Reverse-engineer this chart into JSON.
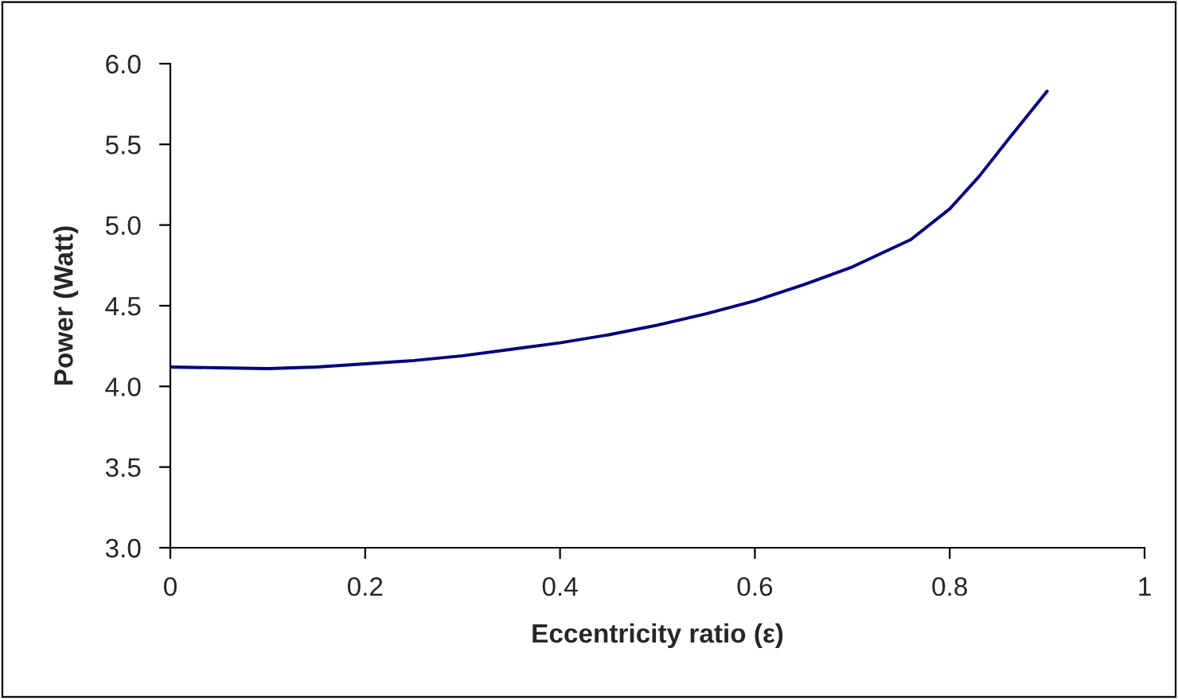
{
  "chart_data": {
    "type": "line",
    "xlabel": "Eccentricity ratio (ε)",
    "ylabel": "Power (Watt)",
    "x": [
      0,
      0.05,
      0.1,
      0.15,
      0.2,
      0.25,
      0.3,
      0.35,
      0.4,
      0.45,
      0.5,
      0.55,
      0.6,
      0.65,
      0.7,
      0.76,
      0.8,
      0.83,
      0.86,
      0.9
    ],
    "series": [
      {
        "color": "#000080",
        "values": [
          4.12,
          4.115,
          4.11,
          4.12,
          4.14,
          4.16,
          4.19,
          4.23,
          4.27,
          4.32,
          4.38,
          4.45,
          4.53,
          4.63,
          4.74,
          4.91,
          5.1,
          5.3,
          5.53,
          5.83
        ]
      }
    ],
    "xlim": [
      0,
      1
    ],
    "xticks": [
      0,
      0.2,
      0.4,
      0.6,
      0.8,
      1
    ],
    "ylim": [
      3.0,
      6.0
    ],
    "yticks": [
      {
        "value": 3.0,
        "label": "3.0"
      },
      {
        "value": 3.5,
        "label": "3.5"
      },
      {
        "value": 4.0,
        "label": "4.0"
      },
      {
        "value": 4.5,
        "label": "4.5"
      },
      {
        "value": 5.0,
        "label": "5.0"
      },
      {
        "value": 5.5,
        "label": "5.5"
      },
      {
        "value": 6.0,
        "label": "6.0"
      }
    ],
    "grid": false,
    "legend": false,
    "marker": "none",
    "line_style": "solid"
  }
}
